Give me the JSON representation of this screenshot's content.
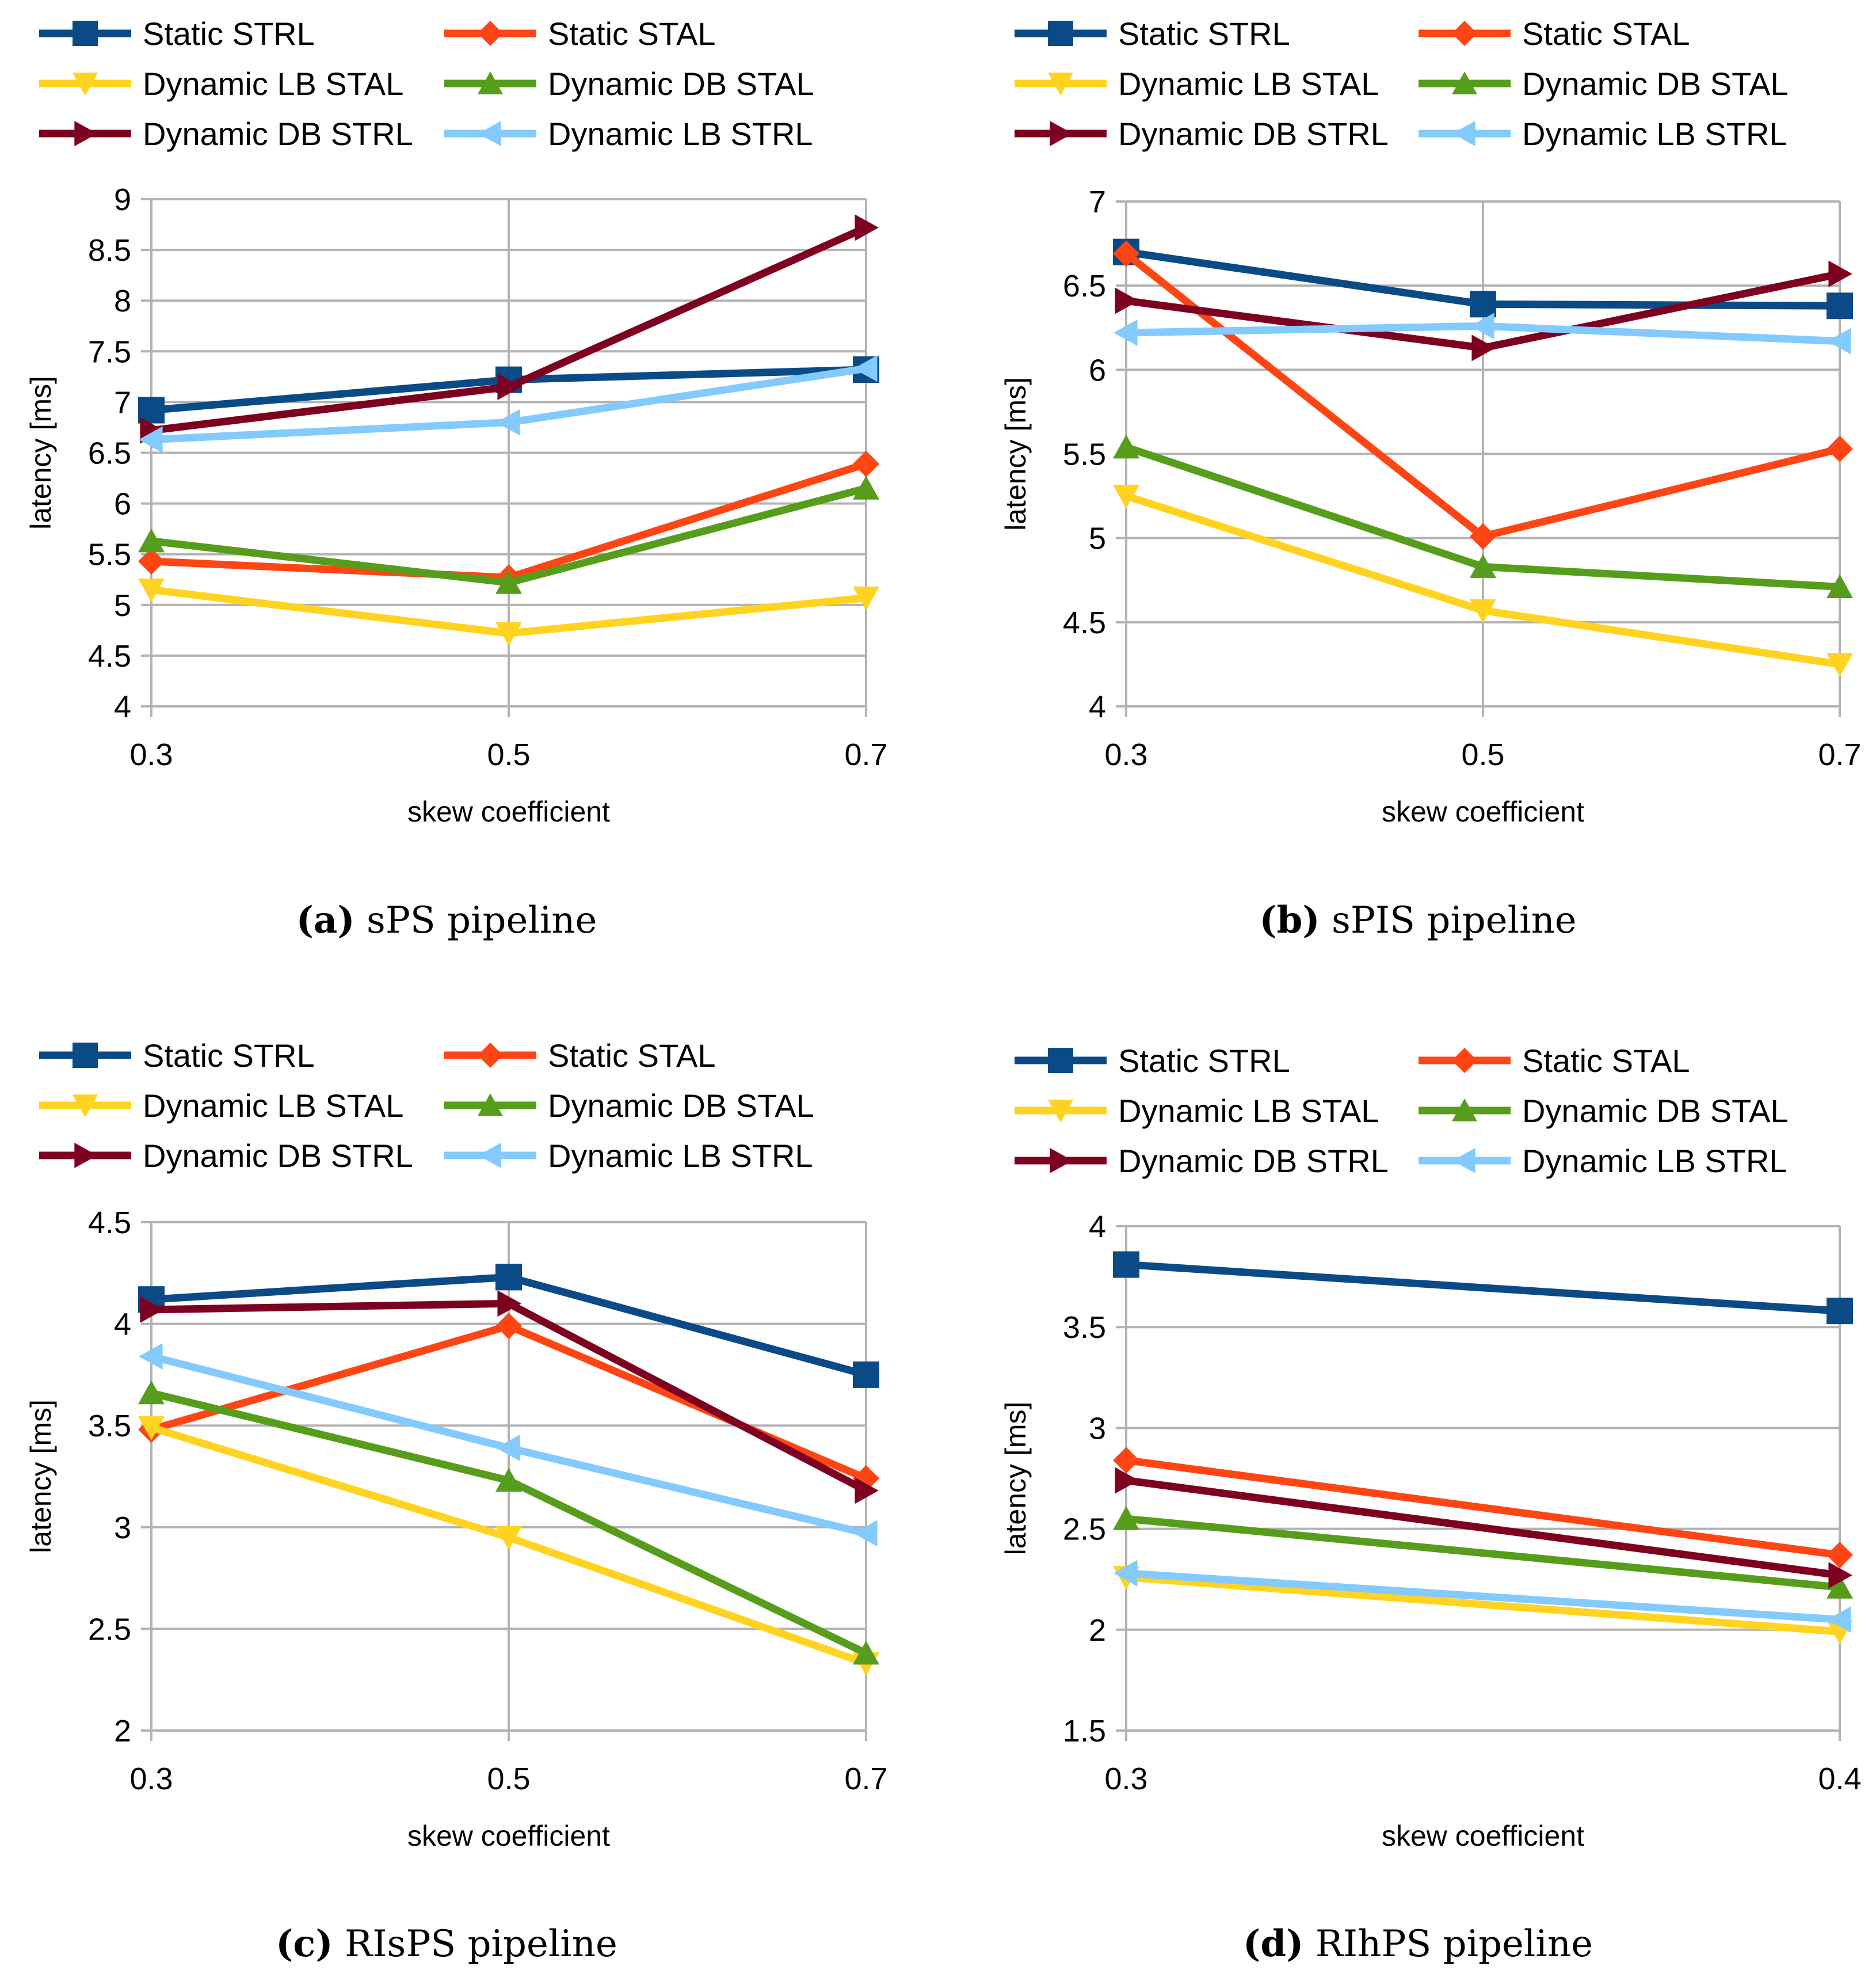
{
  "figure": {
    "series_names": [
      "Static STRL",
      "Static STAL",
      "Dynamic LB STAL",
      "Dynamic DB STAL",
      "Dynamic DB STRL",
      "Dynamic LB STRL"
    ],
    "series_colors": [
      "#0a4a86",
      "#ff4513",
      "#ffd320",
      "#579d1c",
      "#7e0021",
      "#83caff"
    ],
    "series_markers": [
      "square",
      "diamond",
      "triangle-down",
      "triangle-up",
      "triangle-right",
      "triangle-left"
    ]
  },
  "chart_data": [
    {
      "id": "a",
      "type": "line",
      "caption_letter": "(a)",
      "caption_text": "sPS pipeline",
      "xlabel": "skew coefficient",
      "ylabel": "latency [ms]",
      "x": [
        0.3,
        0.5,
        0.7
      ],
      "x_tick_labels": [
        "0.3",
        "0.5",
        "0.7"
      ],
      "xlim": [
        0.3,
        0.7
      ],
      "ylim": [
        4,
        9
      ],
      "y_ticks": [
        4,
        4.5,
        5,
        5.5,
        6,
        6.5,
        7,
        7.5,
        8,
        8.5,
        9
      ],
      "y_tick_labels": [
        "4",
        "4.5",
        "5",
        "5.5",
        "6",
        "6.5",
        "7",
        "7.5",
        "8",
        "8.5",
        "9"
      ],
      "grid": true,
      "legend_position": "top",
      "series": [
        {
          "name": "Static STRL",
          "values": [
            6.92,
            7.22,
            7.32
          ]
        },
        {
          "name": "Static STAL",
          "values": [
            5.43,
            5.27,
            6.39
          ]
        },
        {
          "name": "Dynamic LB STAL",
          "values": [
            5.15,
            4.72,
            5.07
          ]
        },
        {
          "name": "Dynamic DB STAL",
          "values": [
            5.63,
            5.22,
            6.15
          ]
        },
        {
          "name": "Dynamic DB STRL",
          "values": [
            6.72,
            7.15,
            8.72
          ]
        },
        {
          "name": "Dynamic LB STRL",
          "values": [
            6.63,
            6.8,
            7.33
          ]
        }
      ]
    },
    {
      "id": "b",
      "type": "line",
      "caption_letter": "(b)",
      "caption_text": "sPIS pipeline",
      "xlabel": "skew coefficient",
      "ylabel": "latency [ms]",
      "x": [
        0.3,
        0.5,
        0.7
      ],
      "x_tick_labels": [
        "0.3",
        "0.5",
        "0.7"
      ],
      "xlim": [
        0.3,
        0.7
      ],
      "ylim": [
        4,
        7
      ],
      "y_ticks": [
        4,
        4.5,
        5,
        5.5,
        6,
        6.5,
        7
      ],
      "y_tick_labels": [
        "4",
        "4.5",
        "5",
        "5.5",
        "6",
        "6.5",
        "7"
      ],
      "grid": true,
      "legend_position": "top",
      "series": [
        {
          "name": "Static STRL",
          "values": [
            6.7,
            6.39,
            6.38
          ]
        },
        {
          "name": "Static STAL",
          "values": [
            6.69,
            5.01,
            5.53
          ]
        },
        {
          "name": "Dynamic LB STAL",
          "values": [
            5.25,
            4.57,
            4.25
          ]
        },
        {
          "name": "Dynamic DB STAL",
          "values": [
            5.54,
            4.83,
            4.71
          ]
        },
        {
          "name": "Dynamic DB STRL",
          "values": [
            6.41,
            6.13,
            6.57
          ]
        },
        {
          "name": "Dynamic LB STRL",
          "values": [
            6.22,
            6.26,
            6.17
          ]
        }
      ]
    },
    {
      "id": "c",
      "type": "line",
      "caption_letter": "(c)",
      "caption_text": "RIsPS pipeline",
      "xlabel": "skew coefficient",
      "ylabel": "latency [ms]",
      "x": [
        0.3,
        0.5,
        0.7
      ],
      "x_tick_labels": [
        "0.3",
        "0.5",
        "0.7"
      ],
      "xlim": [
        0.3,
        0.7
      ],
      "ylim": [
        2,
        4.5
      ],
      "y_ticks": [
        2,
        2.5,
        3,
        3.5,
        4,
        4.5
      ],
      "y_tick_labels": [
        "2",
        "2.5",
        "3",
        "3.5",
        "4",
        "4.5"
      ],
      "grid": true,
      "legend_position": "top",
      "series": [
        {
          "name": "Static STRL",
          "values": [
            4.12,
            4.23,
            3.75
          ]
        },
        {
          "name": "Static STAL",
          "values": [
            3.48,
            3.99,
            3.24
          ]
        },
        {
          "name": "Dynamic LB STAL",
          "values": [
            3.49,
            2.95,
            2.33
          ]
        },
        {
          "name": "Dynamic DB STAL",
          "values": [
            3.66,
            3.23,
            2.38
          ]
        },
        {
          "name": "Dynamic DB STRL",
          "values": [
            4.07,
            4.1,
            3.18
          ]
        },
        {
          "name": "Dynamic LB STRL",
          "values": [
            3.84,
            3.39,
            2.97
          ]
        }
      ]
    },
    {
      "id": "d",
      "type": "line",
      "caption_letter": "(d)",
      "caption_text": "RIhPS pipeline",
      "xlabel": "skew coefficient",
      "ylabel": "latency [ms]",
      "x": [
        0.3,
        0.4
      ],
      "x_tick_labels": [
        "0.3",
        "0.4"
      ],
      "xlim": [
        0.3,
        0.4
      ],
      "ylim": [
        1.5,
        4
      ],
      "y_ticks": [
        1.5,
        2,
        2.5,
        3,
        3.5,
        4
      ],
      "y_tick_labels": [
        "1.5",
        "2",
        "2.5",
        "3",
        "3.5",
        "4"
      ],
      "grid": true,
      "legend_position": "top",
      "series": [
        {
          "name": "Static STRL",
          "values": [
            3.81,
            3.58
          ]
        },
        {
          "name": "Static STAL",
          "values": [
            2.84,
            2.37
          ]
        },
        {
          "name": "Dynamic LB STAL",
          "values": [
            2.26,
            1.99
          ]
        },
        {
          "name": "Dynamic DB STAL",
          "values": [
            2.55,
            2.21
          ]
        },
        {
          "name": "Dynamic DB STRL",
          "values": [
            2.74,
            2.27
          ]
        },
        {
          "name": "Dynamic LB STRL",
          "values": [
            2.28,
            2.05
          ]
        }
      ]
    }
  ]
}
